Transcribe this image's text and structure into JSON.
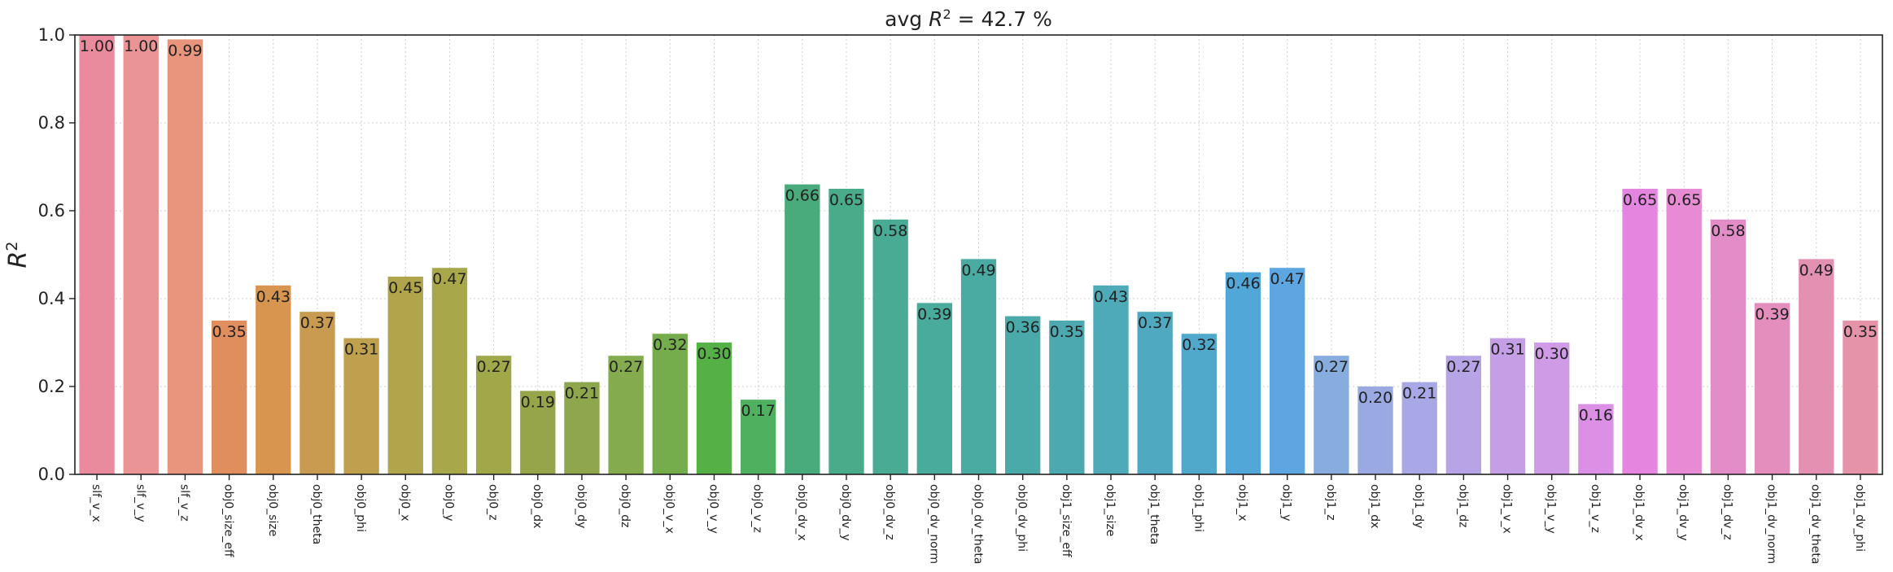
{
  "chart_data": {
    "type": "bar",
    "title": "avg R² = 42.7 %",
    "title_parts": {
      "prefix": "avg ",
      "var": "R",
      "sup": "2",
      "suffix": " = 42.7 %"
    },
    "ylabel": "R²",
    "ylabel_parts": {
      "var": "R",
      "sup": "2"
    },
    "xlabel": "",
    "ylim": [
      0,
      1.0
    ],
    "yticks": [
      "0.0",
      "0.2",
      "0.4",
      "0.6",
      "0.8",
      "1.0"
    ],
    "grid": true,
    "categories": [
      "slf_v_x",
      "slf_v_y",
      "slf_v_z",
      "obj0_size_eff",
      "obj0_size",
      "obj0_theta",
      "obj0_phi",
      "obj0_x",
      "obj0_y",
      "obj0_z",
      "obj0_dx",
      "obj0_dy",
      "obj0_dz",
      "obj0_v_x",
      "obj0_v_y",
      "obj0_v_z",
      "obj0_dv_x",
      "obj0_dv_y",
      "obj0_dv_z",
      "obj0_dv_norm",
      "obj0_dv_theta",
      "obj0_dv_phi",
      "obj1_size_eff",
      "obj1_size",
      "obj1_theta",
      "obj1_phi",
      "obj1_x",
      "obj1_y",
      "obj1_z",
      "obj1_dx",
      "obj1_dy",
      "obj1_dz",
      "obj1_v_x",
      "obj1_v_y",
      "obj1_v_z",
      "obj1_dv_x",
      "obj1_dv_y",
      "obj1_dv_z",
      "obj1_dv_norm",
      "obj1_dv_theta",
      "obj1_dv_phi"
    ],
    "values": [
      1.0,
      1.0,
      0.99,
      0.35,
      0.43,
      0.37,
      0.31,
      0.45,
      0.47,
      0.27,
      0.19,
      0.21,
      0.27,
      0.32,
      0.3,
      0.17,
      0.66,
      0.65,
      0.58,
      0.39,
      0.49,
      0.36,
      0.35,
      0.43,
      0.37,
      0.32,
      0.46,
      0.47,
      0.27,
      0.2,
      0.21,
      0.27,
      0.31,
      0.3,
      0.16,
      0.65,
      0.65,
      0.58,
      0.39,
      0.49,
      0.35
    ],
    "value_labels": [
      "1.00",
      "1.00",
      "0.99",
      "0.35",
      "0.43",
      "0.37",
      "0.31",
      "0.45",
      "0.47",
      "0.27",
      "0.19",
      "0.21",
      "0.27",
      "0.32",
      "0.30",
      "0.17",
      "0.66",
      "0.65",
      "0.58",
      "0.39",
      "0.49",
      "0.36",
      "0.35",
      "0.43",
      "0.37",
      "0.32",
      "0.46",
      "0.47",
      "0.27",
      "0.20",
      "0.21",
      "0.27",
      "0.31",
      "0.30",
      "0.16",
      "0.65",
      "0.65",
      "0.58",
      "0.39",
      "0.49",
      "0.35"
    ],
    "colors": [
      "#ea8b9d",
      "#ea9496",
      "#e9957e",
      "#e18e5f",
      "#d8954f",
      "#c89b50",
      "#bfa04f",
      "#b1a54c",
      "#a8a84a",
      "#a0a84a",
      "#96a54a",
      "#8ea64c",
      "#85ab4f",
      "#75ad4d",
      "#55b145",
      "#4fb05f",
      "#49ab7c",
      "#49ab8a",
      "#49ab93",
      "#49ab9b",
      "#4aaba2",
      "#4aaaa9",
      "#4da9b0",
      "#4eaab8",
      "#4faac1",
      "#50a9cb",
      "#52a7d9",
      "#5da6e1",
      "#86adde",
      "#9aa9e2",
      "#a9a8e6",
      "#b7a4e6",
      "#c59fe6",
      "#cf9be6",
      "#db90e6",
      "#e486df",
      "#e68bd4",
      "#e28dc7",
      "#e38ebd",
      "#e490b3",
      "#e493a8"
    ]
  }
}
